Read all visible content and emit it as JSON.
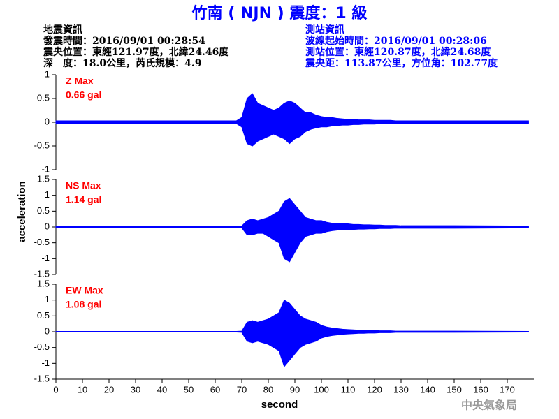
{
  "header": {
    "title": "竹南 ( NJN ) 震度：1 級",
    "info_left": [
      "地震資訊",
      "發震時間：2016/09/01 00:28:54",
      "震央位置：東經121.97度，北緯24.46度",
      "深　度：18.0公里，芮氏規模：4.9"
    ],
    "info_right": [
      "測站資訊",
      "波線起始時間：2016/09/01 00:28:06",
      "測站位置：東經120.87度，北緯24.68度",
      "震央距：113.87公里，方位角：102.77度"
    ],
    "y_label": "acceleration",
    "x_label": "second",
    "watermark": "中央氣象局"
  },
  "chart_data": [
    {
      "type": "area",
      "label": "Z Max",
      "max_label": "0.66 gal",
      "color": "#0000ff",
      "xlim": [
        0,
        180
      ],
      "ylim": [
        -1,
        1
      ],
      "yticks": [
        -1,
        -0.5,
        0,
        0.5,
        1
      ],
      "x": [
        0,
        68,
        70,
        72,
        74,
        76,
        78,
        80,
        82,
        84,
        86,
        88,
        90,
        92,
        94,
        96,
        98,
        100,
        102,
        104,
        106,
        108,
        110,
        112,
        114,
        116,
        118,
        120,
        122,
        124,
        126,
        128,
        130,
        140,
        150,
        178
      ],
      "series": [
        {
          "values": [
            0.03,
            0.03,
            0.1,
            0.5,
            0.6,
            0.4,
            0.35,
            0.3,
            0.25,
            0.3,
            0.4,
            0.45,
            0.4,
            0.3,
            0.2,
            0.2,
            0.15,
            0.12,
            0.1,
            0.1,
            0.08,
            0.07,
            0.06,
            0.06,
            0.05,
            0.05,
            0.05,
            0.04,
            0.04,
            0.04,
            0.04,
            0.03,
            0.03,
            0.03,
            0.03,
            0.03
          ]
        },
        {
          "values": [
            -0.03,
            -0.03,
            -0.1,
            -0.45,
            -0.5,
            -0.4,
            -0.35,
            -0.3,
            -0.25,
            -0.3,
            -0.35,
            -0.45,
            -0.35,
            -0.3,
            -0.2,
            -0.15,
            -0.12,
            -0.1,
            -0.1,
            -0.08,
            -0.07,
            -0.06,
            -0.06,
            -0.05,
            -0.05,
            -0.04,
            -0.04,
            -0.04,
            -0.03,
            -0.03,
            -0.03,
            -0.03,
            -0.03,
            -0.03,
            -0.03,
            -0.03
          ]
        }
      ]
    },
    {
      "type": "area",
      "label": "NS Max",
      "max_label": "1.14 gal",
      "color": "#0000ff",
      "xlim": [
        0,
        180
      ],
      "ylim": [
        -1.5,
        1.5
      ],
      "yticks": [
        -1.5,
        -1,
        -0.5,
        0,
        0.5,
        1,
        1.5
      ],
      "x": [
        0,
        68,
        70,
        72,
        74,
        76,
        78,
        80,
        82,
        84,
        86,
        88,
        90,
        92,
        94,
        96,
        98,
        100,
        102,
        104,
        106,
        108,
        110,
        112,
        114,
        116,
        118,
        120,
        122,
        124,
        126,
        128,
        130,
        140,
        150,
        178
      ],
      "series": [
        {
          "values": [
            0.03,
            0.03,
            0.03,
            0.2,
            0.25,
            0.2,
            0.25,
            0.3,
            0.4,
            0.5,
            0.8,
            0.9,
            0.7,
            0.5,
            0.3,
            0.25,
            0.2,
            0.2,
            0.15,
            0.12,
            0.1,
            0.1,
            0.1,
            0.08,
            0.08,
            0.07,
            0.07,
            0.06,
            0.06,
            0.05,
            0.05,
            0.05,
            0.04,
            0.04,
            0.04,
            0.03
          ]
        },
        {
          "values": [
            -0.03,
            -0.03,
            -0.03,
            -0.25,
            -0.25,
            -0.2,
            -0.2,
            -0.3,
            -0.4,
            -0.5,
            -1.0,
            -1.1,
            -0.8,
            -0.5,
            -0.3,
            -0.25,
            -0.2,
            -0.2,
            -0.15,
            -0.12,
            -0.1,
            -0.1,
            -0.08,
            -0.08,
            -0.07,
            -0.07,
            -0.06,
            -0.06,
            -0.05,
            -0.05,
            -0.05,
            -0.04,
            -0.04,
            -0.04,
            -0.04,
            -0.03
          ]
        }
      ]
    },
    {
      "type": "area",
      "label": "EW Max",
      "max_label": "1.08 gal",
      "color": "#0000ff",
      "xlim": [
        0,
        180
      ],
      "ylim": [
        -1.5,
        1.5
      ],
      "yticks": [
        -1.5,
        -1,
        -0.5,
        0,
        0.5,
        1,
        1.5
      ],
      "xticks": [
        0,
        10,
        20,
        30,
        40,
        50,
        60,
        70,
        80,
        90,
        100,
        110,
        120,
        130,
        140,
        150,
        160,
        170
      ],
      "x": [
        0,
        68,
        70,
        72,
        74,
        76,
        78,
        80,
        82,
        84,
        86,
        88,
        90,
        92,
        94,
        96,
        98,
        100,
        102,
        104,
        106,
        108,
        110,
        112,
        114,
        116,
        118,
        120,
        122,
        124,
        126,
        128,
        130,
        140,
        150,
        178
      ],
      "series": [
        {
          "values": [
            0.01,
            0.01,
            0.02,
            0.3,
            0.35,
            0.3,
            0.35,
            0.4,
            0.5,
            0.6,
            1.0,
            0.9,
            0.7,
            0.5,
            0.4,
            0.35,
            0.3,
            0.2,
            0.15,
            0.12,
            0.1,
            0.08,
            0.07,
            0.06,
            0.05,
            0.05,
            0.04,
            0.04,
            0.03,
            0.03,
            0.03,
            0.02,
            0.02,
            0.02,
            0.02,
            0.01
          ]
        },
        {
          "values": [
            -0.01,
            -0.01,
            -0.02,
            -0.3,
            -0.35,
            -0.3,
            -0.35,
            -0.4,
            -0.5,
            -0.6,
            -1.1,
            -0.9,
            -0.7,
            -0.5,
            -0.4,
            -0.35,
            -0.3,
            -0.2,
            -0.15,
            -0.12,
            -0.1,
            -0.08,
            -0.07,
            -0.06,
            -0.05,
            -0.05,
            -0.04,
            -0.04,
            -0.03,
            -0.03,
            -0.03,
            -0.02,
            -0.02,
            -0.02,
            -0.02,
            -0.01
          ]
        }
      ]
    }
  ]
}
